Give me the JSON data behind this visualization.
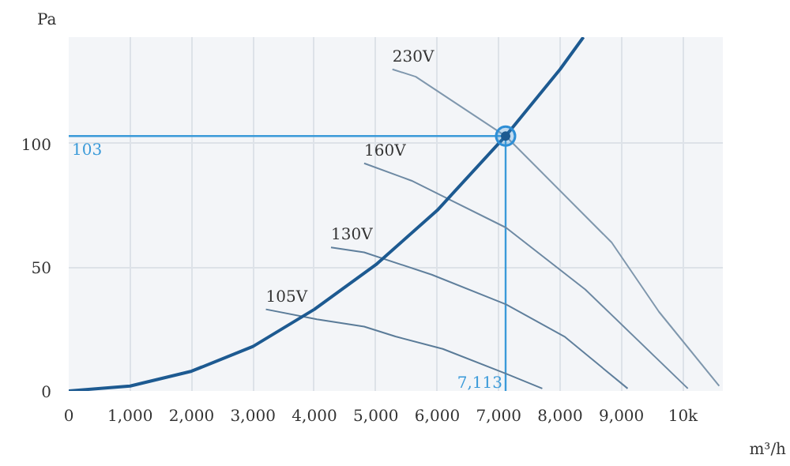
{
  "chart_data": {
    "type": "line",
    "xlabel": "m³/h",
    "ylabel": "Pa",
    "xlim": [
      0,
      10650
    ],
    "ylim": [
      0,
      143
    ],
    "xticks": [
      0,
      {
        "value": 1000,
        "label": "1,000"
      },
      {
        "value": 2000,
        "label": "2,000"
      },
      {
        "value": 3000,
        "label": "3,000"
      },
      {
        "value": 4000,
        "label": "4,000"
      },
      {
        "value": 5000,
        "label": "5,000"
      },
      {
        "value": 6000,
        "label": "6,000"
      },
      {
        "value": 7000,
        "label": "7,000"
      },
      {
        "value": 8000,
        "label": "8,000"
      },
      {
        "value": 9000,
        "label": "9,000"
      },
      {
        "value": 10000,
        "label": "10k"
      }
    ],
    "yticks": [
      0,
      50,
      100
    ],
    "grid": true,
    "series": [
      {
        "name": "230V",
        "color": "#7f97ad",
        "x": [
          5270,
          5650,
          7113,
          8840,
          9610,
          10590
        ],
        "values": [
          130,
          127,
          103,
          60,
          32,
          2
        ]
      },
      {
        "name": "160V",
        "color": "#6d89a3",
        "x": [
          4810,
          5580,
          7120,
          8410,
          10080
        ],
        "values": [
          92,
          85,
          66,
          41,
          1
        ]
      },
      {
        "name": "130V",
        "color": "#5f7f9c",
        "x": [
          4270,
          4810,
          5910,
          7120,
          8070,
          9100
        ],
        "values": [
          58,
          56,
          47,
          35,
          22,
          1
        ]
      },
      {
        "name": "105V",
        "color": "#5a7b98",
        "x": [
          3210,
          4040,
          4810,
          5320,
          6090,
          7120,
          7710
        ],
        "values": [
          33,
          29,
          26,
          22,
          17,
          7,
          1
        ]
      },
      {
        "color": "#1d5a91",
        "x": [
          0,
          1000,
          2000,
          3000,
          4000,
          5000,
          6000,
          7000,
          7113,
          8000,
          8380
        ],
        "values": [
          0,
          2,
          8,
          18,
          33,
          51,
          73,
          100,
          103,
          130,
          143
        ]
      },
      {
        "type": "scatter",
        "marker": "circle",
        "color": "#2f8fd6",
        "x": [
          7113
        ],
        "values": [
          103
        ]
      }
    ],
    "ref_lines": [
      {
        "axis": "y",
        "value": 103,
        "label": "103",
        "color": "#3a9ad9"
      },
      {
        "axis": "x",
        "value": 7113,
        "label": "7,113",
        "color": "#3a9ad9"
      }
    ]
  }
}
